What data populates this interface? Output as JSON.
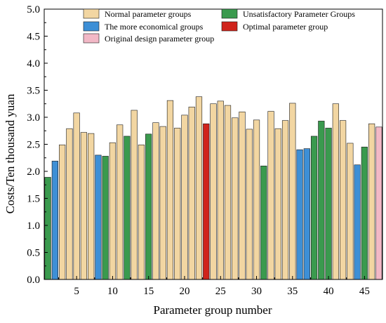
{
  "chart_data": {
    "type": "bar",
    "title": "",
    "xlabel": "Parameter group number",
    "ylabel": "Costs/Ten thousand yuan",
    "ylim": [
      0,
      5.0
    ],
    "xlim": [
      0.5,
      47.5
    ],
    "yticks": [
      "0.0",
      "0.5",
      "1.0",
      "1.5",
      "2.0",
      "2.5",
      "3.0",
      "3.5",
      "4.0",
      "4.5",
      "5.0"
    ],
    "xticks": [
      "5",
      "10",
      "15",
      "20",
      "25",
      "30",
      "35",
      "40",
      "45"
    ],
    "grid": false,
    "legend_position": "top",
    "legend": [
      {
        "key": "normal",
        "label": "Normal parameter groups",
        "color": "#F2D6A2"
      },
      {
        "key": "unsat",
        "label": "Unsatisfactory Parameter Groups",
        "color": "#3A9A4E"
      },
      {
        "key": "econ",
        "label": "The more economical groups",
        "color": "#3D8FD6"
      },
      {
        "key": "optimal",
        "label": "Optimal parameter group",
        "color": "#D0231B"
      },
      {
        "key": "original",
        "label": "Original design parameter group",
        "color": "#F2B8C6"
      }
    ],
    "bars": [
      {
        "x": 1,
        "value": 1.89,
        "group": "unsat"
      },
      {
        "x": 2,
        "value": 2.19,
        "group": "econ"
      },
      {
        "x": 3,
        "value": 2.49,
        "group": "normal"
      },
      {
        "x": 4,
        "value": 2.79,
        "group": "normal"
      },
      {
        "x": 5,
        "value": 3.08,
        "group": "normal"
      },
      {
        "x": 6,
        "value": 2.72,
        "group": "normal"
      },
      {
        "x": 7,
        "value": 2.7,
        "group": "normal"
      },
      {
        "x": 8,
        "value": 2.3,
        "group": "econ"
      },
      {
        "x": 9,
        "value": 2.28,
        "group": "unsat"
      },
      {
        "x": 10,
        "value": 2.53,
        "group": "normal"
      },
      {
        "x": 11,
        "value": 2.86,
        "group": "normal"
      },
      {
        "x": 12,
        "value": 2.65,
        "group": "unsat"
      },
      {
        "x": 13,
        "value": 3.13,
        "group": "normal"
      },
      {
        "x": 14,
        "value": 2.49,
        "group": "normal"
      },
      {
        "x": 15,
        "value": 2.69,
        "group": "unsat"
      },
      {
        "x": 16,
        "value": 2.9,
        "group": "normal"
      },
      {
        "x": 17,
        "value": 2.83,
        "group": "normal"
      },
      {
        "x": 18,
        "value": 3.31,
        "group": "normal"
      },
      {
        "x": 19,
        "value": 2.8,
        "group": "normal"
      },
      {
        "x": 20,
        "value": 3.04,
        "group": "normal"
      },
      {
        "x": 21,
        "value": 3.19,
        "group": "normal"
      },
      {
        "x": 22,
        "value": 3.38,
        "group": "normal"
      },
      {
        "x": 23,
        "value": 2.88,
        "group": "optimal"
      },
      {
        "x": 24,
        "value": 3.25,
        "group": "normal"
      },
      {
        "x": 25,
        "value": 3.3,
        "group": "normal"
      },
      {
        "x": 26,
        "value": 3.22,
        "group": "normal"
      },
      {
        "x": 27,
        "value": 2.99,
        "group": "normal"
      },
      {
        "x": 28,
        "value": 3.1,
        "group": "normal"
      },
      {
        "x": 29,
        "value": 2.78,
        "group": "normal"
      },
      {
        "x": 30,
        "value": 2.95,
        "group": "normal"
      },
      {
        "x": 31,
        "value": 2.1,
        "group": "unsat"
      },
      {
        "x": 32,
        "value": 3.11,
        "group": "normal"
      },
      {
        "x": 33,
        "value": 2.79,
        "group": "normal"
      },
      {
        "x": 34,
        "value": 2.94,
        "group": "normal"
      },
      {
        "x": 35,
        "value": 3.26,
        "group": "normal"
      },
      {
        "x": 36,
        "value": 2.4,
        "group": "econ"
      },
      {
        "x": 37,
        "value": 2.42,
        "group": "econ"
      },
      {
        "x": 38,
        "value": 2.65,
        "group": "unsat"
      },
      {
        "x": 39,
        "value": 2.93,
        "group": "unsat"
      },
      {
        "x": 40,
        "value": 2.8,
        "group": "unsat"
      },
      {
        "x": 41,
        "value": 3.25,
        "group": "normal"
      },
      {
        "x": 42,
        "value": 2.94,
        "group": "normal"
      },
      {
        "x": 43,
        "value": 2.52,
        "group": "normal"
      },
      {
        "x": 44,
        "value": 2.12,
        "group": "econ"
      },
      {
        "x": 45,
        "value": 2.45,
        "group": "unsat"
      },
      {
        "x": 46,
        "value": 2.88,
        "group": "normal"
      },
      {
        "x": 47,
        "value": 2.82,
        "group": "original"
      }
    ]
  }
}
